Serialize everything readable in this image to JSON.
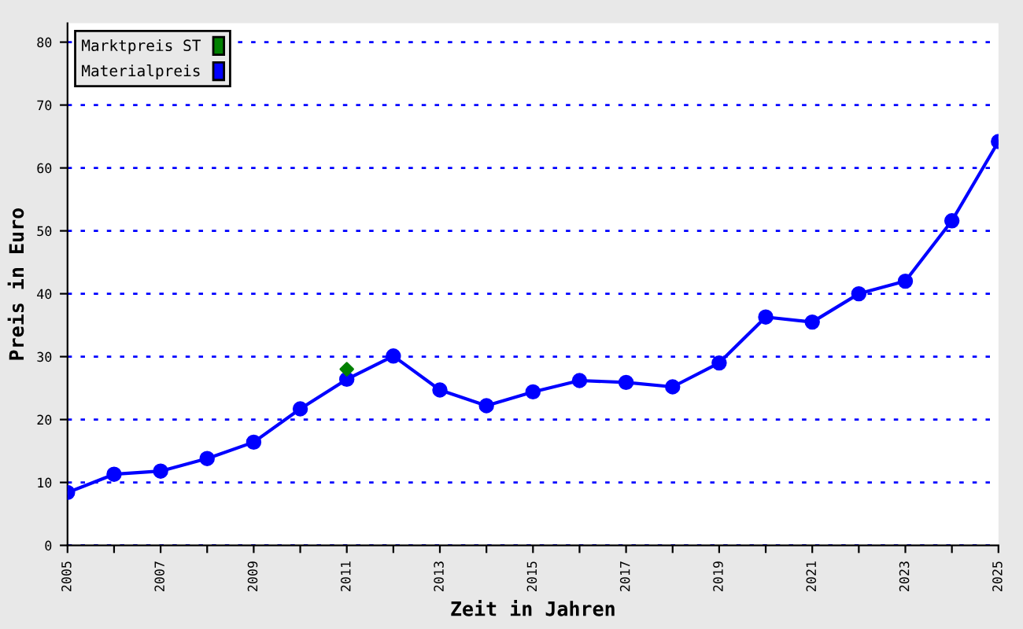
{
  "chart_data": {
    "type": "line",
    "xlabel": "Zeit in Jahren",
    "ylabel": "Preis in Euro",
    "x": [
      2005,
      2006,
      2007,
      2008,
      2009,
      2010,
      2011,
      2012,
      2013,
      2014,
      2015,
      2016,
      2017,
      2018,
      2019,
      2020,
      2021,
      2022,
      2023,
      2024,
      2025
    ],
    "series": [
      {
        "name": "Marktpreis ST",
        "color": "#008000",
        "type": "scatter",
        "marker": "diamond",
        "x": [
          2011
        ],
        "values": [
          28
        ]
      },
      {
        "name": "Materialpreis",
        "color": "#0000ff",
        "marker": "circle",
        "values": [
          8.4,
          11.3,
          11.8,
          13.8,
          16.4,
          21.7,
          26.4,
          30.1,
          24.7,
          22.2,
          24.4,
          26.2,
          25.9,
          25.2,
          29.0,
          36.3,
          35.5,
          40.0,
          42.0,
          51.6,
          64.2
        ]
      }
    ],
    "xlim": [
      2005,
      2025
    ],
    "ylim": [
      0,
      83
    ],
    "xticks": [
      2005,
      {
        "value": 2006,
        "label": null
      },
      2007,
      {
        "value": 2008,
        "label": null
      },
      2009,
      {
        "value": 2010,
        "label": null
      },
      2011,
      {
        "value": 2012,
        "label": null
      },
      2013,
      {
        "value": 2014,
        "label": null
      },
      2015,
      {
        "value": 2016,
        "label": null
      },
      2017,
      {
        "value": 2018,
        "label": null
      },
      2019,
      {
        "value": 2020,
        "label": null
      },
      2021,
      {
        "value": 2022,
        "label": null
      },
      2023,
      {
        "value": 2024,
        "label": null
      },
      2025
    ],
    "yticks": [
      0,
      10,
      20,
      30,
      40,
      50,
      60,
      70,
      80
    ],
    "grid": "y",
    "legend": "top left",
    "line_style": "solid"
  }
}
